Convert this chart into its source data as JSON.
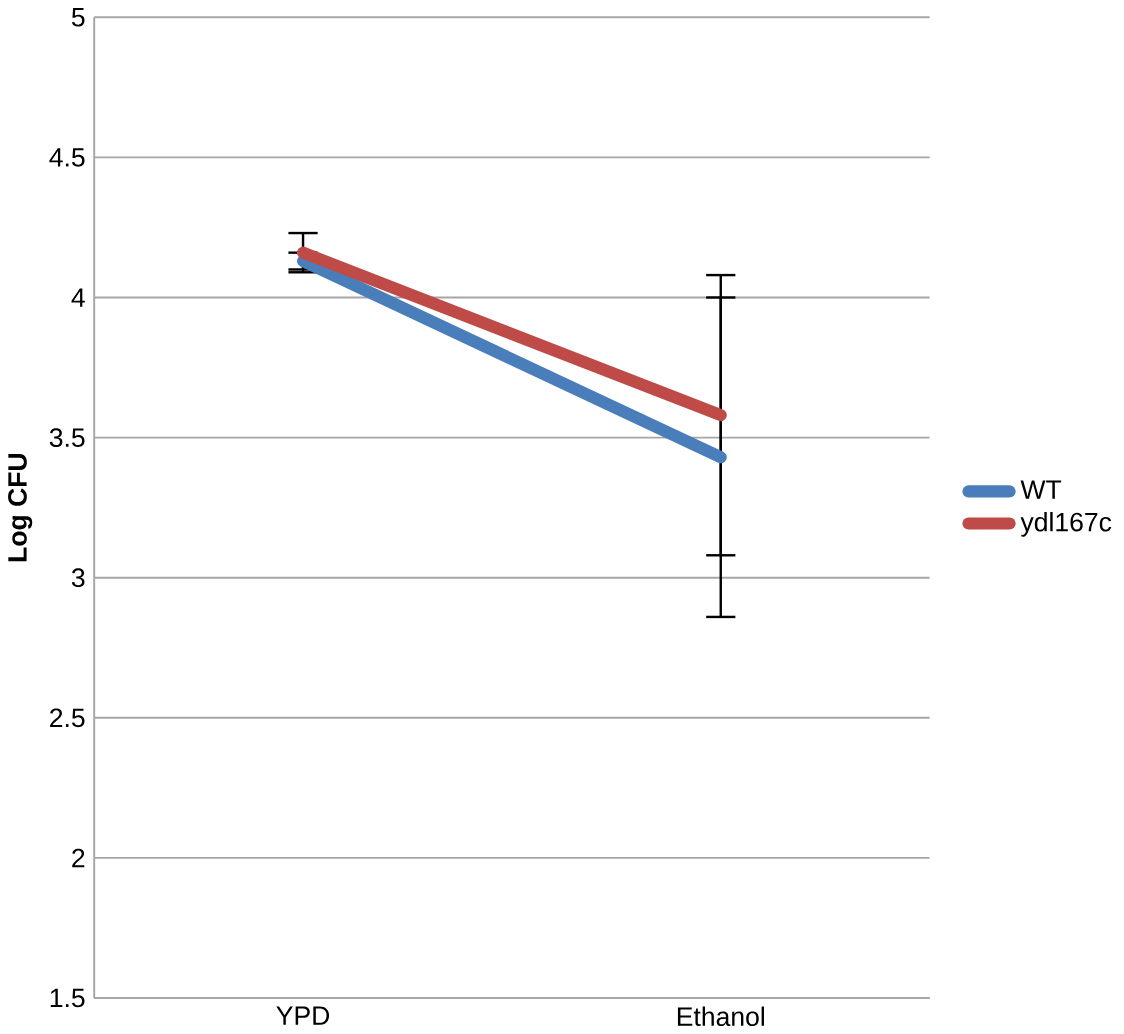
{
  "chart_data": {
    "type": "line",
    "ylabel": "Log CFU",
    "categories": [
      "YPD",
      "Ethanol"
    ],
    "series": [
      {
        "name": "WT",
        "color": "#4a7ebb",
        "values": [
          4.13,
          3.43
        ],
        "errors": [
          0.03,
          0.57
        ]
      },
      {
        "name": "ydl167c",
        "color": "#be4b48",
        "values": [
          4.16,
          3.58
        ],
        "errors": [
          0.07,
          0.5
        ]
      }
    ],
    "ylim": [
      1.5,
      5
    ],
    "yticks": [
      1.5,
      2,
      2.5,
      3,
      3.5,
      4,
      4.5,
      5
    ],
    "grid": "y",
    "legend": "right",
    "marker": "none",
    "line_style": "solid"
  }
}
